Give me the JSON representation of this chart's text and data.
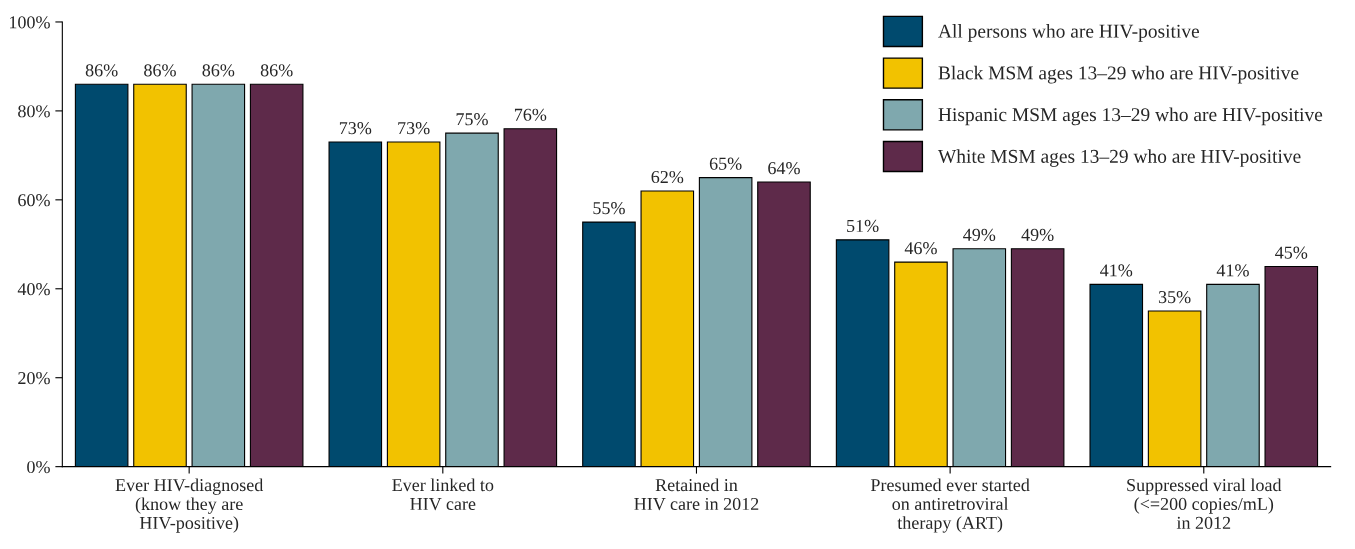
{
  "chart_data": {
    "type": "bar",
    "categories": [
      "Ever HIV-diagnosed\n(know they are\nHIV-positive)",
      "Ever linked to\nHIV care",
      "Retained in\nHIV care in 2012",
      "Presumed ever started\non antiretroviral\ntherapy (ART)",
      "Suppressed viral load\n(<=200 copies/mL)\nin 2012"
    ],
    "series": [
      {
        "name": "All persons who are HIV-positive",
        "color": "#004a6e",
        "values": [
          86,
          73,
          55,
          51,
          41
        ],
        "value_labels": [
          "86%",
          "73%",
          "55%",
          "51%",
          "41%"
        ]
      },
      {
        "name": "Black MSM ages 13–29 who are HIV-positive",
        "color": "#f2c200",
        "values": [
          86,
          73,
          62,
          46,
          35
        ],
        "value_labels": [
          "86%",
          "73%",
          "62%",
          "46%",
          "35%"
        ]
      },
      {
        "name": "Hispanic MSM ages 13–29 who are HIV-positive",
        "color": "#7fa8ae",
        "values": [
          86,
          75,
          65,
          49,
          41
        ],
        "value_labels": [
          "86%",
          "75%",
          "65%",
          "49%",
          "41%"
        ]
      },
      {
        "name": "White MSM ages 13–29 who are HIV-positive",
        "color": "#5e2a4a",
        "values": [
          86,
          76,
          64,
          49,
          45
        ],
        "value_labels": [
          "86%",
          "76%",
          "64%",
          "49%",
          "45%"
        ]
      }
    ],
    "ylim": [
      0,
      100
    ],
    "yticks": [
      {
        "value": 0,
        "label": "0%"
      },
      {
        "value": 20,
        "label": "20%"
      },
      {
        "value": 40,
        "label": "40%"
      },
      {
        "value": 60,
        "label": "60%"
      },
      {
        "value": 80,
        "label": "80%"
      },
      {
        "value": 100,
        "label": "100%"
      }
    ],
    "grid": false,
    "legend": "top right"
  }
}
